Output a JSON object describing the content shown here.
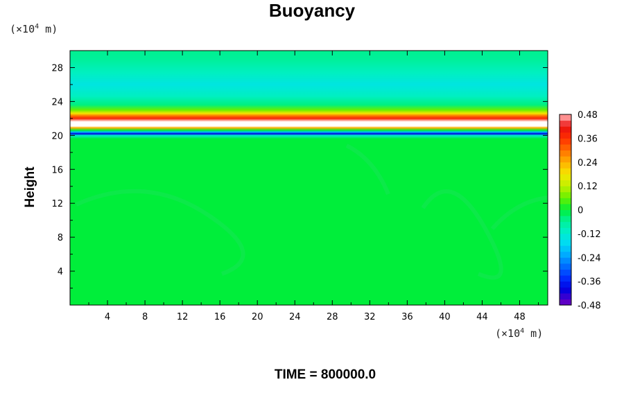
{
  "chart_data": {
    "type": "heatmap",
    "title": "Buoyancy",
    "ylabel": "Height",
    "xlabel": "",
    "y_unit": {
      "prefix": "(×10",
      "exp": "4",
      "suffix": " m)"
    },
    "x_unit": {
      "prefix": "(×10",
      "exp": "4",
      "suffix": " m)"
    },
    "xlim": [
      0,
      51
    ],
    "ylim": [
      0,
      30
    ],
    "x_ticks": [
      "4",
      "8",
      "12",
      "16",
      "20",
      "24",
      "28",
      "32",
      "36",
      "40",
      "44",
      "48"
    ],
    "x_tick_values": [
      4,
      8,
      12,
      16,
      20,
      24,
      28,
      32,
      36,
      40,
      44,
      48
    ],
    "y_ticks": [
      "4",
      "8",
      "12",
      "16",
      "20",
      "24",
      "28"
    ],
    "y_tick_values": [
      4,
      8,
      12,
      16,
      20,
      24,
      28
    ],
    "colorbar": {
      "ticks": [
        "0.48",
        "0.36",
        "0.24",
        "0.12",
        "0",
        "-0.12",
        "-0.24",
        "-0.36",
        "-0.48"
      ],
      "tick_values": [
        0.48,
        0.36,
        0.24,
        0.12,
        0,
        -0.12,
        -0.24,
        -0.36,
        -0.48
      ],
      "range": [
        -0.48,
        0.48
      ]
    },
    "profile": [
      {
        "y": 0,
        "v": 0.0
      },
      {
        "y": 19.6,
        "v": 0.0
      },
      {
        "y": 20.0,
        "v": -0.12
      },
      {
        "y": 20.2,
        "v": -0.4
      },
      {
        "y": 20.4,
        "v": -0.2
      },
      {
        "y": 20.6,
        "v": 0.0
      },
      {
        "y": 20.9,
        "v": 0.24
      },
      {
        "y": 21.1,
        "v": 0.5
      },
      {
        "y": 21.6,
        "v": 0.5
      },
      {
        "y": 22.0,
        "v": 0.38
      },
      {
        "y": 22.3,
        "v": 0.3
      },
      {
        "y": 22.6,
        "v": 0.18
      },
      {
        "y": 23.0,
        "v": 0.06
      },
      {
        "y": 23.6,
        "v": -0.04
      },
      {
        "y": 24.6,
        "v": -0.1
      },
      {
        "y": 26.0,
        "v": -0.14
      },
      {
        "y": 27.4,
        "v": -0.1
      },
      {
        "y": 29.0,
        "v": -0.06
      },
      {
        "y": 30.0,
        "v": -0.05
      }
    ]
  },
  "footer": {
    "time_label": "TIME = 800000.0"
  }
}
